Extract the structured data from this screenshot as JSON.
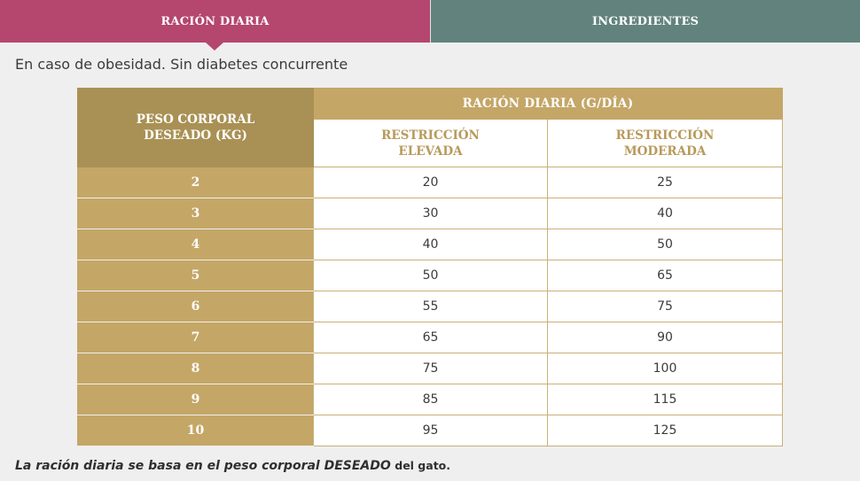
{
  "tabs": {
    "active_label": "RACIÓN DIARIA",
    "inactive_label": "INGREDIENTES"
  },
  "subtitle": "En caso de obesidad. Sin diabetes concurrente",
  "table": {
    "weight_header_line1": "PESO CORPORAL",
    "weight_header_line2": "DESEADO (KG)",
    "ration_header": "RACIÓN DIARIA (G/DÍA)",
    "col_high_line1": "RESTRICCIÓN",
    "col_high_line2": "ELEVADA",
    "col_mod_line1": "RESTRICCIÓN",
    "col_mod_line2": "MODERADA",
    "rows": [
      {
        "weight": "2",
        "high": "20",
        "moderate": "25"
      },
      {
        "weight": "3",
        "high": "30",
        "moderate": "40"
      },
      {
        "weight": "4",
        "high": "40",
        "moderate": "50"
      },
      {
        "weight": "5",
        "high": "50",
        "moderate": "65"
      },
      {
        "weight": "6",
        "high": "55",
        "moderate": "75"
      },
      {
        "weight": "7",
        "high": "65",
        "moderate": "90"
      },
      {
        "weight": "8",
        "high": "75",
        "moderate": "100"
      },
      {
        "weight": "9",
        "high": "85",
        "moderate": "115"
      },
      {
        "weight": "10",
        "high": "95",
        "moderate": "125"
      }
    ]
  },
  "footnote": {
    "main": "La ración diaria se basa en el peso corporal DESEADO",
    "tail": "del gato."
  },
  "colors": {
    "tab_active": "#b5466e",
    "tab_inactive": "#62837d",
    "gold_dark": "#a99155",
    "gold": "#c4a667",
    "gold_text": "#b89a5b"
  }
}
